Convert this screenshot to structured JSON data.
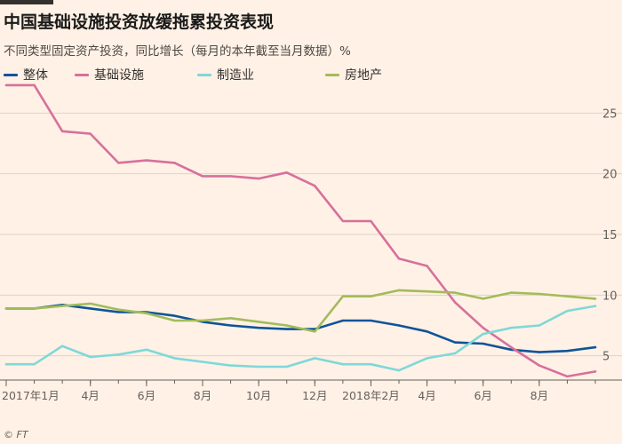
{
  "title": "中国基础设施投资放缓拖累投资表现",
  "subtitle": "不同类型固定资产投资，同比增长（每月的本年截至当月数据）%",
  "source": "© FT",
  "chart_data": {
    "type": "line",
    "x": [
      "2017-01",
      "2017-02",
      "2017-03",
      "2017-04",
      "2017-05",
      "2017-06",
      "2017-07",
      "2017-08",
      "2017-09",
      "2017-10",
      "2017-11",
      "2017-12",
      "2018-01",
      "2018-02",
      "2018-03",
      "2018-04",
      "2018-05",
      "2018-06",
      "2018-07",
      "2018-08",
      "2018-09",
      "2018-10"
    ],
    "x_tick_labels": [
      {
        "x": "2017-01",
        "label": "2017年1月"
      },
      {
        "x": "2017-04",
        "label": "4月"
      },
      {
        "x": "2017-06",
        "label": "6月"
      },
      {
        "x": "2017-08",
        "label": "8月"
      },
      {
        "x": "2017-10",
        "label": "10月"
      },
      {
        "x": "2017-12",
        "label": "12月"
      },
      {
        "x": "2018-02",
        "label": "2018年2月"
      },
      {
        "x": "2018-04",
        "label": "4月"
      },
      {
        "x": "2018-06",
        "label": "6月"
      },
      {
        "x": "2018-08",
        "label": "8月"
      }
    ],
    "y_ticks": [
      5,
      10,
      15,
      20,
      25
    ],
    "ylim": [
      3,
      27
    ],
    "y_axis_side": "right",
    "grid": true,
    "legend_position": "top",
    "series": [
      {
        "name": "整体",
        "color": "#0f5499",
        "values": [
          {
            "x": "2017-01",
            "y": 8.9
          },
          {
            "x": "2017-02",
            "y": 8.9
          },
          {
            "x": "2017-03",
            "y": 9.2
          },
          {
            "x": "2017-04",
            "y": 8.9
          },
          {
            "x": "2017-05",
            "y": 8.6
          },
          {
            "x": "2017-06",
            "y": 8.6
          },
          {
            "x": "2017-07",
            "y": 8.3
          },
          {
            "x": "2017-08",
            "y": 7.8
          },
          {
            "x": "2017-09",
            "y": 7.5
          },
          {
            "x": "2017-10",
            "y": 7.3
          },
          {
            "x": "2017-11",
            "y": 7.2
          },
          {
            "x": "2017-12",
            "y": 7.2
          },
          {
            "x": "2018-01",
            "y": 7.9
          },
          {
            "x": "2018-02",
            "y": 7.9
          },
          {
            "x": "2018-03",
            "y": 7.5
          },
          {
            "x": "2018-04",
            "y": 7.0
          },
          {
            "x": "2018-05",
            "y": 6.1
          },
          {
            "x": "2018-06",
            "y": 6.0
          },
          {
            "x": "2018-07",
            "y": 5.5
          },
          {
            "x": "2018-08",
            "y": 5.3
          },
          {
            "x": "2018-09",
            "y": 5.4
          },
          {
            "x": "2018-10",
            "y": 5.7
          }
        ]
      },
      {
        "name": "基础设施",
        "color": "#d7709c",
        "values": [
          {
            "x": "2017-01",
            "y": 27.3
          },
          {
            "x": "2017-02",
            "y": 27.3
          },
          {
            "x": "2017-03",
            "y": 23.5
          },
          {
            "x": "2017-04",
            "y": 23.3
          },
          {
            "x": "2017-05",
            "y": 20.9
          },
          {
            "x": "2017-06",
            "y": 21.1
          },
          {
            "x": "2017-07",
            "y": 20.9
          },
          {
            "x": "2017-08",
            "y": 19.8
          },
          {
            "x": "2017-09",
            "y": 19.8
          },
          {
            "x": "2017-10",
            "y": 19.6
          },
          {
            "x": "2017-11",
            "y": 20.1
          },
          {
            "x": "2017-12",
            "y": 19.0
          },
          {
            "x": "2018-01",
            "y": 16.1
          },
          {
            "x": "2018-02",
            "y": 16.1
          },
          {
            "x": "2018-03",
            "y": 13.0
          },
          {
            "x": "2018-04",
            "y": 12.4
          },
          {
            "x": "2018-05",
            "y": 9.4
          },
          {
            "x": "2018-06",
            "y": 7.3
          },
          {
            "x": "2018-07",
            "y": 5.7
          },
          {
            "x": "2018-08",
            "y": 4.2
          },
          {
            "x": "2018-09",
            "y": 3.3
          },
          {
            "x": "2018-10",
            "y": 3.7
          }
        ]
      },
      {
        "name": "制造业",
        "color": "#7fd8d8",
        "values": [
          {
            "x": "2017-01",
            "y": 4.3
          },
          {
            "x": "2017-02",
            "y": 4.3
          },
          {
            "x": "2017-03",
            "y": 5.8
          },
          {
            "x": "2017-04",
            "y": 4.9
          },
          {
            "x": "2017-05",
            "y": 5.1
          },
          {
            "x": "2017-06",
            "y": 5.5
          },
          {
            "x": "2017-07",
            "y": 4.8
          },
          {
            "x": "2017-08",
            "y": 4.5
          },
          {
            "x": "2017-09",
            "y": 4.2
          },
          {
            "x": "2017-10",
            "y": 4.1
          },
          {
            "x": "2017-11",
            "y": 4.1
          },
          {
            "x": "2017-12",
            "y": 4.8
          },
          {
            "x": "2018-01",
            "y": 4.3
          },
          {
            "x": "2018-02",
            "y": 4.3
          },
          {
            "x": "2018-03",
            "y": 3.8
          },
          {
            "x": "2018-04",
            "y": 4.8
          },
          {
            "x": "2018-05",
            "y": 5.2
          },
          {
            "x": "2018-06",
            "y": 6.8
          },
          {
            "x": "2018-07",
            "y": 7.3
          },
          {
            "x": "2018-08",
            "y": 7.5
          },
          {
            "x": "2018-09",
            "y": 8.7
          },
          {
            "x": "2018-10",
            "y": 9.1
          }
        ]
      },
      {
        "name": "房地产",
        "color": "#a2bc5a",
        "values": [
          {
            "x": "2017-01",
            "y": 8.9
          },
          {
            "x": "2017-02",
            "y": 8.9
          },
          {
            "x": "2017-03",
            "y": 9.1
          },
          {
            "x": "2017-04",
            "y": 9.3
          },
          {
            "x": "2017-05",
            "y": 8.8
          },
          {
            "x": "2017-06",
            "y": 8.5
          },
          {
            "x": "2017-07",
            "y": 7.9
          },
          {
            "x": "2017-08",
            "y": 7.9
          },
          {
            "x": "2017-09",
            "y": 8.1
          },
          {
            "x": "2017-10",
            "y": 7.8
          },
          {
            "x": "2017-11",
            "y": 7.5
          },
          {
            "x": "2017-12",
            "y": 7.0
          },
          {
            "x": "2018-01",
            "y": 9.9
          },
          {
            "x": "2018-02",
            "y": 9.9
          },
          {
            "x": "2018-03",
            "y": 10.4
          },
          {
            "x": "2018-04",
            "y": 10.3
          },
          {
            "x": "2018-05",
            "y": 10.2
          },
          {
            "x": "2018-06",
            "y": 9.7
          },
          {
            "x": "2018-07",
            "y": 10.2
          },
          {
            "x": "2018-08",
            "y": 10.1
          },
          {
            "x": "2018-09",
            "y": 9.9
          },
          {
            "x": "2018-10",
            "y": 9.7
          }
        ]
      }
    ]
  }
}
